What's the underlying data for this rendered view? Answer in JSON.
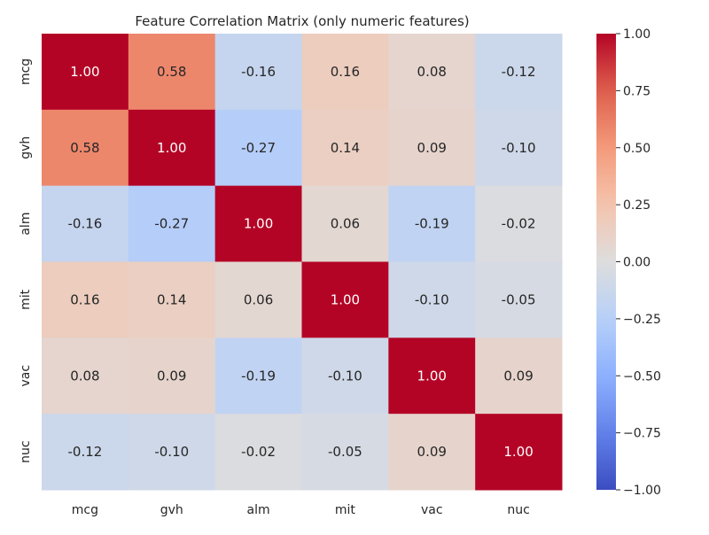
{
  "chart_data": {
    "type": "heatmap",
    "title": "Feature Correlation Matrix (only numeric features)",
    "xlabel": "",
    "ylabel": "",
    "x_labels": [
      "mcg",
      "gvh",
      "alm",
      "mit",
      "vac",
      "nuc"
    ],
    "y_labels": [
      "mcg",
      "gvh",
      "alm",
      "mit",
      "vac",
      "nuc"
    ],
    "values": [
      [
        1.0,
        0.58,
        -0.16,
        0.16,
        0.08,
        -0.12
      ],
      [
        0.58,
        1.0,
        -0.27,
        0.14,
        0.09,
        -0.1
      ],
      [
        -0.16,
        -0.27,
        1.0,
        0.06,
        -0.19,
        -0.02
      ],
      [
        0.16,
        0.14,
        0.06,
        1.0,
        -0.1,
        -0.05
      ],
      [
        0.08,
        0.09,
        -0.19,
        -0.1,
        1.0,
        0.09
      ],
      [
        -0.12,
        -0.1,
        -0.02,
        -0.05,
        0.09,
        1.0
      ]
    ],
    "value_format": "0.00",
    "colormap": "coolwarm",
    "colormap_stops": [
      "#3b4cc0",
      "#dddddd",
      "#b40426"
    ],
    "vmin": -1.0,
    "vmax": 1.0,
    "colorbar_ticks": [
      1.0,
      0.75,
      0.5,
      0.25,
      0.0,
      -0.25,
      -0.5,
      -0.75,
      -1.0
    ],
    "colorbar_tick_labels": [
      "1.00",
      "0.75",
      "0.50",
      "0.25",
      "0.00",
      "−0.25",
      "−0.50",
      "−0.75",
      "−1.00"
    ],
    "grid": false,
    "legend": "colorbar-right"
  }
}
